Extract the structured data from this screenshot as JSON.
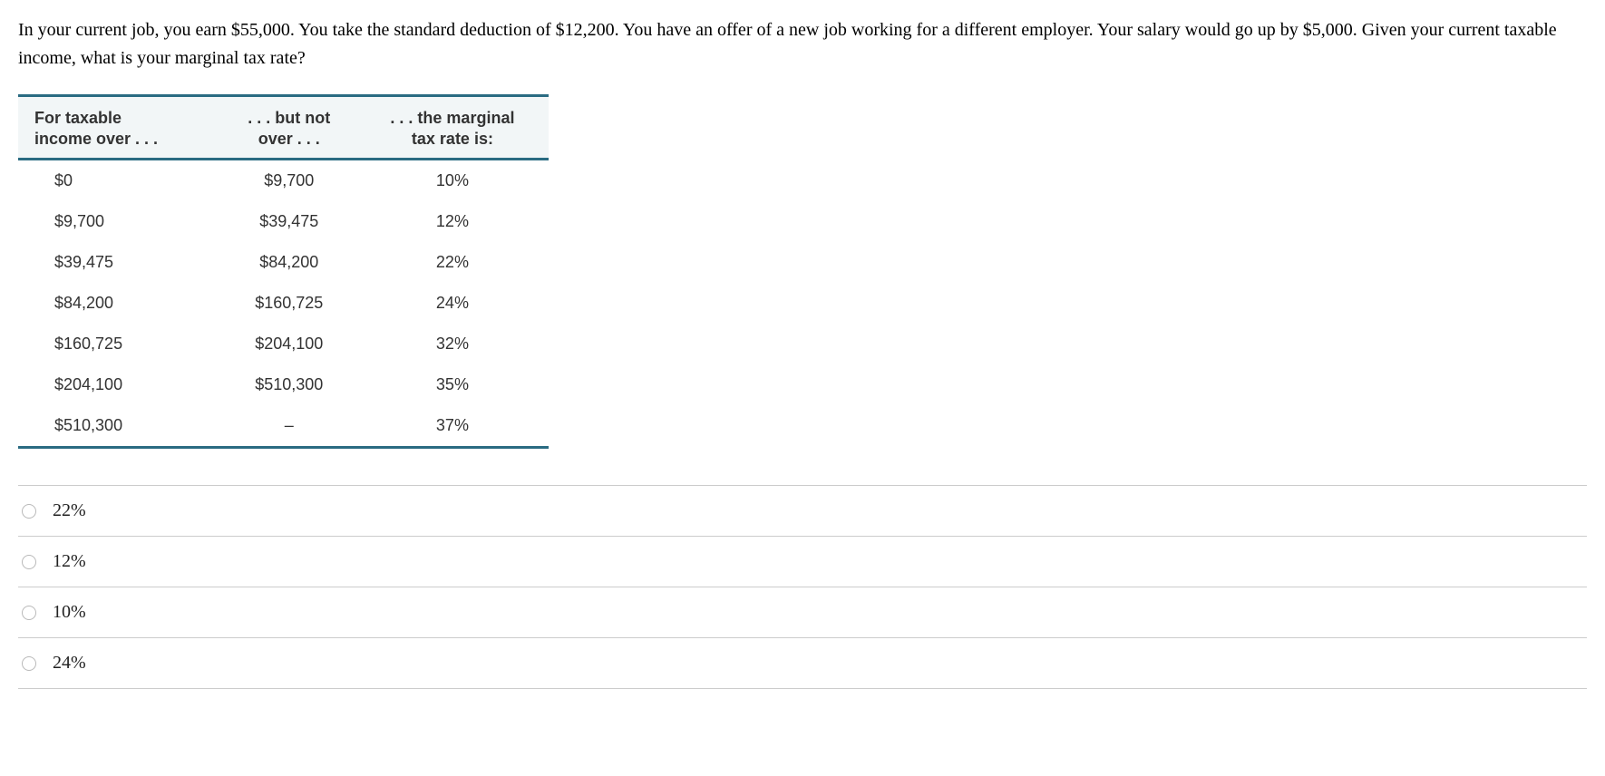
{
  "question": "In your current job, you earn $55,000. You take the standard deduction of $12,200. You have an offer of a new job working for a different employer. Your salary would go up by $5,000. Given your current taxable income, what is your marginal tax rate?",
  "tax_table": {
    "header": {
      "col1_line1": "For taxable",
      "col1_line2": "income over . . .",
      "col2_line1": ". . . but not",
      "col2_line2": "over . . .",
      "col3_line1": ". . . the marginal",
      "col3_line2": "tax rate is:"
    },
    "rows": [
      {
        "over": "$0",
        "not_over": "$9,700",
        "rate": "10%"
      },
      {
        "over": "$9,700",
        "not_over": "$39,475",
        "rate": "12%"
      },
      {
        "over": "$39,475",
        "not_over": "$84,200",
        "rate": "22%"
      },
      {
        "over": "$84,200",
        "not_over": "$160,725",
        "rate": "24%"
      },
      {
        "over": "$160,725",
        "not_over": "$204,100",
        "rate": "32%"
      },
      {
        "over": "$204,100",
        "not_over": "$510,300",
        "rate": "35%"
      },
      {
        "over": "$510,300",
        "not_over": "–",
        "rate": "37%"
      }
    ],
    "style": {
      "border_color": "#2a6b82",
      "header_bg": "#f2f6f7",
      "body_bg": "#ffffff",
      "font_family": "Arial",
      "header_fontsize": 18,
      "body_fontsize": 18
    }
  },
  "options": [
    {
      "label": "22%"
    },
    {
      "label": "12%"
    },
    {
      "label": "10%"
    },
    {
      "label": "24%"
    }
  ]
}
